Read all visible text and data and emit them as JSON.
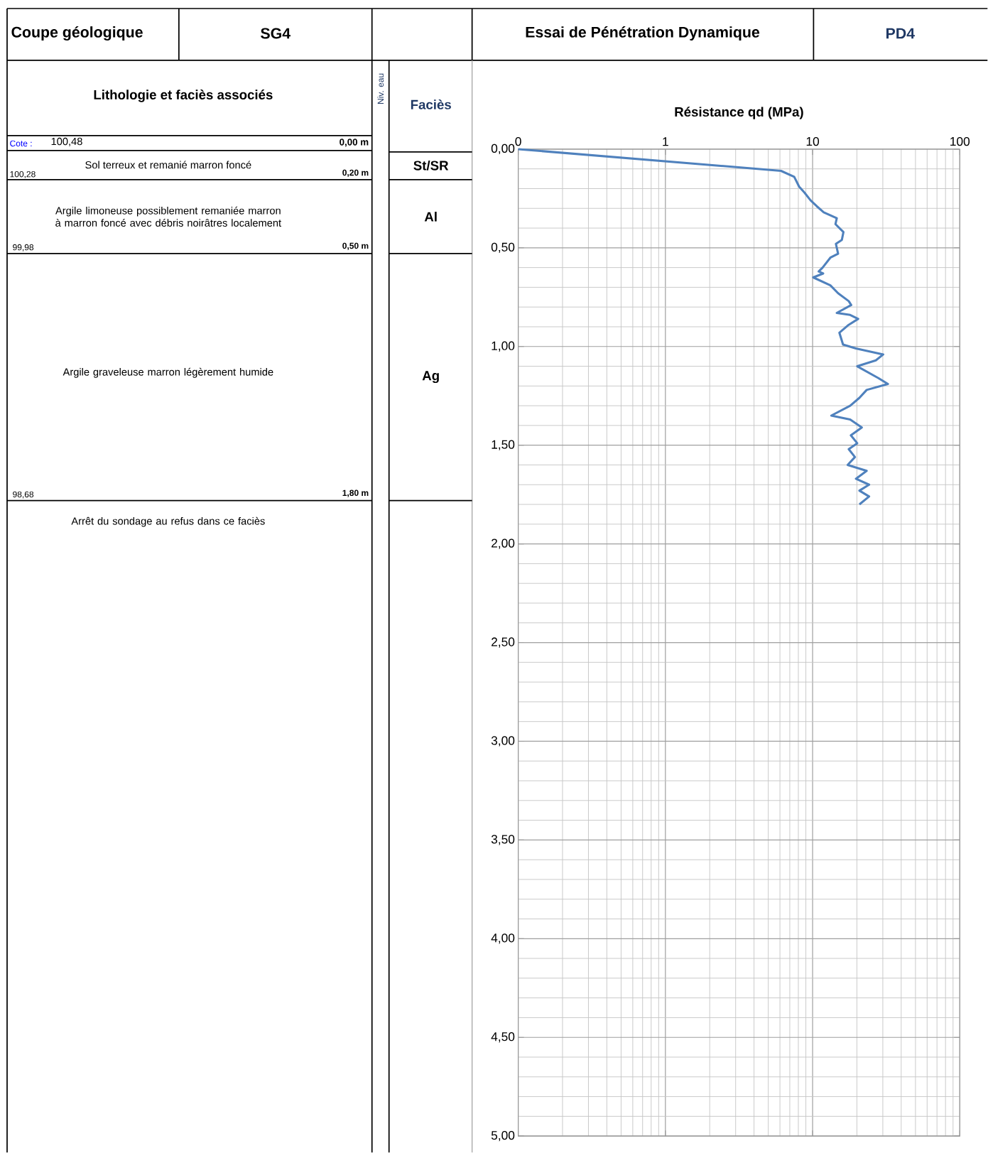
{
  "chart_data": {
    "type": "line",
    "title": "Essai de Pénétration Dynamique",
    "subtitle": "PD4",
    "xlabel": "Résistance qd (MPa)",
    "log": "x",
    "grid": true,
    "xlim": [
      0.1,
      100
    ],
    "xticks": [
      {
        "value": 0.1,
        "label": "0"
      },
      1,
      10,
      100
    ],
    "ylim": [
      5,
      0
    ],
    "yticks": [
      {
        "value": 0,
        "label": "0,00"
      },
      {
        "value": 0.5,
        "label": "0,50"
      },
      {
        "value": 1,
        "label": "1,00"
      },
      {
        "value": 1.5,
        "label": "1,50"
      },
      {
        "value": 2,
        "label": "2,00"
      },
      {
        "value": 2.5,
        "label": "2,50"
      },
      {
        "value": 3,
        "label": "3,00"
      },
      {
        "value": 3.5,
        "label": "3,50"
      },
      {
        "value": 4,
        "label": "4,00"
      },
      {
        "value": 4.5,
        "label": "4,50"
      },
      {
        "value": 5,
        "label": "5,00"
      }
    ],
    "series": [
      {
        "color": "#4f81bd",
        "x": [
          0.1,
          6.1,
          7.5,
          8.1,
          8.8,
          9.7,
          10.7,
          11.9,
          14.6,
          14.3,
          16.2,
          15.8,
          14.4,
          14.9,
          13.2,
          11.7,
          11.0,
          11.8,
          10.1,
          13.2,
          14.9,
          17.6,
          18.3,
          14.6,
          18.0,
          20.4,
          17.6,
          15.2,
          16.1,
          19.7,
          30.2,
          26.9,
          20.1,
          28.0,
          32.5,
          23.3,
          20.8,
          18.0,
          13.4,
          18.0,
          21.6,
          18.2,
          20.1,
          17.6,
          19.4,
          17.3,
          23.3,
          19.7,
          24.2,
          20.8,
          24.2,
          20.8
        ],
        "values": [
          0,
          0.11,
          0.14,
          0.19,
          0.22,
          0.26,
          0.29,
          0.32,
          0.35,
          0.38,
          0.42,
          0.46,
          0.48,
          0.53,
          0.55,
          0.6,
          0.62,
          0.63,
          0.65,
          0.69,
          0.73,
          0.77,
          0.79,
          0.83,
          0.84,
          0.86,
          0.89,
          0.93,
          0.99,
          1.01,
          1.04,
          1.07,
          1.1,
          1.16,
          1.19,
          1.22,
          1.26,
          1.3,
          1.35,
          1.37,
          1.41,
          1.45,
          1.49,
          1.52,
          1.56,
          1.6,
          1.63,
          1.67,
          1.7,
          1.73,
          1.76,
          1.8
        ]
      }
    ],
    "annotations": [
      "Coupe géologique",
      "SG4",
      "Lithologie et faciès associés",
      "Niv. eau",
      "Faciès",
      "Cote :",
      "100,48",
      "0,00 m",
      "Sol terreux et remanié marron foncé",
      "100,28",
      "0,20 m",
      "St/SR",
      "Argile limoneuse possiblement remaniée marron à marron foncé avec débris noirâtres localement",
      "99,98",
      "0,50 m",
      "Al",
      "Argile graveleuse marron légèrement humide",
      "Ag",
      "98,68",
      "1,80 m",
      "Arrêt du sondage au refus dans ce faciès"
    ]
  }
}
